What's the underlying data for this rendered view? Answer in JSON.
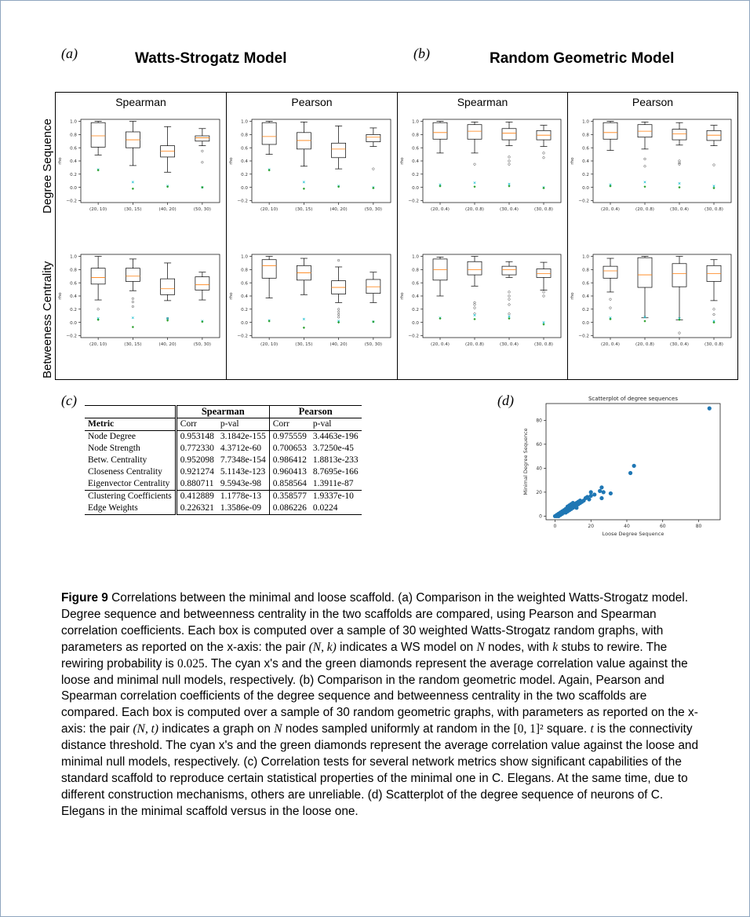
{
  "panel_labels": {
    "a": "(a)",
    "b": "(b)",
    "c": "(c)",
    "d": "(d)"
  },
  "titles": {
    "ws": "Watts-Strogatz Model",
    "rg": "Random Geometric Model"
  },
  "row_labels": {
    "degree": "Degree Sequence",
    "betweenness": "Betweeness Centrality"
  },
  "column_headers": [
    "Spearman",
    "Pearson",
    "Spearman",
    "Pearson"
  ],
  "boxplot_axis": {
    "ylabel": "rho",
    "yticks": [
      "1.0",
      "0.8",
      "0.6",
      "0.4",
      "0.2",
      "0.0",
      "−0.2"
    ]
  },
  "chart_data": [
    {
      "id": "ws-degree-spearman",
      "type": "boxplot",
      "model": "Watts-Strogatz",
      "metric": "Degree Sequence",
      "coefficient": "Spearman",
      "ylim": [
        -0.2,
        1.0
      ],
      "ylabel": "rho",
      "categories": [
        "(20, 10)",
        "(30, 15)",
        "(40, 20)",
        "(50, 30)"
      ],
      "boxes": [
        {
          "whislo": 0.49,
          "q1": 0.61,
          "med": 0.78,
          "q3": 0.98,
          "whishi": 1.0,
          "fliers": []
        },
        {
          "whislo": 0.33,
          "q1": 0.6,
          "med": 0.72,
          "q3": 0.84,
          "whishi": 1.0,
          "fliers": []
        },
        {
          "whislo": 0.23,
          "q1": 0.46,
          "med": 0.55,
          "q3": 0.63,
          "whishi": 0.92,
          "fliers": []
        },
        {
          "whislo": 0.63,
          "q1": 0.7,
          "med": 0.75,
          "q3": 0.78,
          "whishi": 0.89,
          "fliers": [
            0.55,
            0.38
          ]
        }
      ],
      "loose_null_x": [
        0.27,
        0.08,
        0.02,
        0.0
      ],
      "minimal_null_diamond": [
        0.26,
        -0.02,
        0.01,
        0.0
      ]
    },
    {
      "id": "ws-degree-pearson",
      "type": "boxplot",
      "model": "Watts-Strogatz",
      "metric": "Degree Sequence",
      "coefficient": "Pearson",
      "ylim": [
        -0.2,
        1.0
      ],
      "ylabel": "rho",
      "categories": [
        "(20, 10)",
        "(30, 15)",
        "(40, 20)",
        "(50, 30)"
      ],
      "boxes": [
        {
          "whislo": 0.5,
          "q1": 0.65,
          "med": 0.77,
          "q3": 0.98,
          "whishi": 1.0,
          "fliers": []
        },
        {
          "whislo": 0.32,
          "q1": 0.58,
          "med": 0.71,
          "q3": 0.83,
          "whishi": 0.99,
          "fliers": []
        },
        {
          "whislo": 0.28,
          "q1": 0.45,
          "med": 0.58,
          "q3": 0.67,
          "whishi": 0.93,
          "fliers": []
        },
        {
          "whislo": 0.62,
          "q1": 0.69,
          "med": 0.76,
          "q3": 0.8,
          "whishi": 0.9,
          "fliers": [
            0.28
          ]
        }
      ],
      "loose_null_x": [
        0.27,
        0.08,
        0.02,
        0.0
      ],
      "minimal_null_diamond": [
        0.26,
        -0.02,
        0.01,
        -0.01
      ]
    },
    {
      "id": "rg-degree-spearman",
      "type": "boxplot",
      "model": "Random Geometric",
      "metric": "Degree Sequence",
      "coefficient": "Spearman",
      "ylim": [
        -0.2,
        1.0
      ],
      "ylabel": "rho",
      "categories": [
        "(20, 0.4)",
        "(20, 0.8)",
        "(30, 0.4)",
        "(30, 0.8)"
      ],
      "boxes": [
        {
          "whislo": 0.52,
          "q1": 0.73,
          "med": 0.83,
          "q3": 0.98,
          "whishi": 1.0,
          "fliers": []
        },
        {
          "whislo": 0.52,
          "q1": 0.73,
          "med": 0.85,
          "q3": 0.95,
          "whishi": 0.99,
          "fliers": [
            0.35
          ]
        },
        {
          "whislo": 0.63,
          "q1": 0.72,
          "med": 0.82,
          "q3": 0.89,
          "whishi": 0.99,
          "fliers": [
            0.46,
            0.4,
            0.35
          ]
        },
        {
          "whislo": 0.62,
          "q1": 0.72,
          "med": 0.79,
          "q3": 0.86,
          "whishi": 0.94,
          "fliers": [
            0.52,
            0.45
          ]
        }
      ],
      "loose_null_x": [
        0.04,
        0.07,
        0.05,
        0.0
      ],
      "minimal_null_diamond": [
        0.02,
        0.01,
        0.02,
        -0.01
      ]
    },
    {
      "id": "rg-degree-pearson",
      "type": "boxplot",
      "model": "Random Geometric",
      "metric": "Degree Sequence",
      "coefficient": "Pearson",
      "ylim": [
        -0.2,
        1.0
      ],
      "ylabel": "rho",
      "categories": [
        "(20, 0.4)",
        "(20, 0.8)",
        "(30, 0.4)",
        "(30, 0.8)"
      ],
      "boxes": [
        {
          "whislo": 0.56,
          "q1": 0.73,
          "med": 0.83,
          "q3": 0.98,
          "whishi": 1.0,
          "fliers": []
        },
        {
          "whislo": 0.58,
          "q1": 0.76,
          "med": 0.85,
          "q3": 0.95,
          "whishi": 0.99,
          "fliers": [
            0.43,
            0.32
          ]
        },
        {
          "whislo": 0.64,
          "q1": 0.72,
          "med": 0.81,
          "q3": 0.88,
          "whishi": 0.98,
          "fliers": [
            0.4,
            0.37,
            0.35
          ]
        },
        {
          "whislo": 0.63,
          "q1": 0.71,
          "med": 0.79,
          "q3": 0.86,
          "whishi": 0.94,
          "fliers": [
            0.34
          ]
        }
      ],
      "loose_null_x": [
        0.04,
        0.08,
        0.06,
        0.02
      ],
      "minimal_null_diamond": [
        0.02,
        0.01,
        0.0,
        -0.01
      ]
    },
    {
      "id": "ws-betweenness-spearman",
      "type": "boxplot",
      "model": "Watts-Strogatz",
      "metric": "Betweeness Centrality",
      "coefficient": "Spearman",
      "ylim": [
        -0.2,
        1.0
      ],
      "ylabel": "rho",
      "categories": [
        "(20, 10)",
        "(30, 15)",
        "(40, 20)",
        "(50, 30)"
      ],
      "boxes": [
        {
          "whislo": 0.34,
          "q1": 0.58,
          "med": 0.68,
          "q3": 0.82,
          "whishi": 1.0,
          "fliers": [
            0.2
          ]
        },
        {
          "whislo": 0.48,
          "q1": 0.62,
          "med": 0.7,
          "q3": 0.82,
          "whishi": 0.96,
          "fliers": [
            0.36,
            0.31,
            0.24
          ]
        },
        {
          "whislo": 0.33,
          "q1": 0.42,
          "med": 0.51,
          "q3": 0.66,
          "whishi": 0.9,
          "fliers": [
            0.06
          ]
        },
        {
          "whislo": 0.34,
          "q1": 0.49,
          "med": 0.57,
          "q3": 0.69,
          "whishi": 0.76,
          "fliers": []
        }
      ],
      "loose_null_x": [
        0.06,
        0.07,
        0.06,
        0.02
      ],
      "minimal_null_diamond": [
        0.04,
        -0.07,
        0.03,
        0.01
      ]
    },
    {
      "id": "ws-betweenness-pearson",
      "type": "boxplot",
      "model": "Watts-Strogatz",
      "metric": "Betweeness Centrality",
      "coefficient": "Pearson",
      "ylim": [
        -0.2,
        1.0
      ],
      "ylabel": "rho",
      "categories": [
        "(20, 10)",
        "(30, 15)",
        "(40, 20)",
        "(50, 30)"
      ],
      "boxes": [
        {
          "whislo": 0.37,
          "q1": 0.67,
          "med": 0.86,
          "q3": 0.95,
          "whishi": 1.0,
          "fliers": []
        },
        {
          "whislo": 0.42,
          "q1": 0.64,
          "med": 0.75,
          "q3": 0.86,
          "whishi": 0.97,
          "fliers": []
        },
        {
          "whislo": 0.3,
          "q1": 0.43,
          "med": 0.53,
          "q3": 0.63,
          "whishi": 0.84,
          "fliers": [
            0.94,
            0.2,
            0.16,
            0.12,
            0.08
          ]
        },
        {
          "whislo": 0.3,
          "q1": 0.44,
          "med": 0.54,
          "q3": 0.65,
          "whishi": 0.76,
          "fliers": []
        }
      ],
      "loose_null_x": [
        0.03,
        0.05,
        0.02,
        0.01
      ],
      "minimal_null_diamond": [
        0.02,
        -0.08,
        0.0,
        0.01
      ]
    },
    {
      "id": "rg-betweenness-spearman",
      "type": "boxplot",
      "model": "Random Geometric",
      "metric": "Betweeness Centrality",
      "coefficient": "Spearman",
      "ylim": [
        -0.2,
        1.0
      ],
      "ylabel": "rho",
      "categories": [
        "(20, 0.4)",
        "(20, 0.8)",
        "(30, 0.4)",
        "(30, 0.8)"
      ],
      "boxes": [
        {
          "whislo": 0.4,
          "q1": 0.64,
          "med": 0.8,
          "q3": 0.96,
          "whishi": 0.99,
          "fliers": []
        },
        {
          "whislo": 0.55,
          "q1": 0.72,
          "med": 0.8,
          "q3": 0.92,
          "whishi": 1.0,
          "fliers": [
            0.3,
            0.27,
            0.22,
            0.13
          ]
        },
        {
          "whislo": 0.68,
          "q1": 0.72,
          "med": 0.8,
          "q3": 0.85,
          "whishi": 0.92,
          "fliers": [
            0.46,
            0.4,
            0.35,
            0.27,
            0.13
          ]
        },
        {
          "whislo": 0.49,
          "q1": 0.68,
          "med": 0.74,
          "q3": 0.81,
          "whishi": 0.91,
          "fliers": [
            0.46,
            0.4
          ]
        }
      ],
      "loose_null_x": [
        0.07,
        0.11,
        0.09,
        0.0
      ],
      "minimal_null_diamond": [
        0.06,
        0.05,
        0.06,
        -0.03
      ]
    },
    {
      "id": "rg-betweenness-pearson",
      "type": "boxplot",
      "model": "Random Geometric",
      "metric": "Betweeness Centrality",
      "coefficient": "Pearson",
      "ylim": [
        -0.2,
        1.0
      ],
      "ylabel": "rho",
      "categories": [
        "(20, 0.4)",
        "(20, 0.8)",
        "(30, 0.4)",
        "(30, 0.8)"
      ],
      "boxes": [
        {
          "whislo": 0.46,
          "q1": 0.67,
          "med": 0.78,
          "q3": 0.85,
          "whishi": 0.97,
          "fliers": [
            0.35,
            0.22
          ]
        },
        {
          "whislo": 0.07,
          "q1": 0.53,
          "med": 0.72,
          "q3": 0.98,
          "whishi": 1.0,
          "fliers": []
        },
        {
          "whislo": 0.04,
          "q1": 0.54,
          "med": 0.74,
          "q3": 0.89,
          "whishi": 1.0,
          "fliers": [
            -0.16
          ]
        },
        {
          "whislo": 0.33,
          "q1": 0.62,
          "med": 0.74,
          "q3": 0.86,
          "whishi": 0.95,
          "fliers": [
            0.2,
            0.12
          ]
        }
      ],
      "loose_null_x": [
        0.07,
        0.08,
        0.06,
        0.02
      ],
      "minimal_null_diamond": [
        0.05,
        0.02,
        0.04,
        0.0
      ]
    },
    {
      "id": "scatter-degree",
      "type": "scatter",
      "title": "Scatterplot of degree sequences",
      "xlabel": "Loose Degree Sequence",
      "ylabel": "Minimal Degree Sequence",
      "xlim": [
        -5,
        92
      ],
      "ylim": [
        -3,
        94
      ],
      "xticks": [
        0,
        20,
        40,
        60,
        80
      ],
      "yticks": [
        0,
        20,
        40,
        60,
        80
      ],
      "points": [
        [
          0,
          0
        ],
        [
          1,
          0
        ],
        [
          1,
          1
        ],
        [
          2,
          1
        ],
        [
          2,
          2
        ],
        [
          2,
          0
        ],
        [
          3,
          1
        ],
        [
          3,
          2
        ],
        [
          3,
          3
        ],
        [
          4,
          2
        ],
        [
          4,
          3
        ],
        [
          4,
          4
        ],
        [
          5,
          3
        ],
        [
          5,
          4
        ],
        [
          5,
          5
        ],
        [
          6,
          3
        ],
        [
          6,
          5
        ],
        [
          6,
          6
        ],
        [
          7,
          4
        ],
        [
          7,
          6
        ],
        [
          7,
          8
        ],
        [
          8,
          5
        ],
        [
          8,
          7
        ],
        [
          8,
          9
        ],
        [
          9,
          6
        ],
        [
          9,
          8
        ],
        [
          9,
          10
        ],
        [
          10,
          7
        ],
        [
          10,
          9
        ],
        [
          10,
          11
        ],
        [
          11,
          8
        ],
        [
          11,
          10
        ],
        [
          12,
          9
        ],
        [
          12,
          11
        ],
        [
          12,
          7
        ],
        [
          13,
          10
        ],
        [
          13,
          12
        ],
        [
          14,
          11
        ],
        [
          14,
          13
        ],
        [
          15,
          12
        ],
        [
          16,
          13
        ],
        [
          17,
          15
        ],
        [
          18,
          16
        ],
        [
          19,
          14
        ],
        [
          20,
          20
        ],
        [
          20,
          17
        ],
        [
          22,
          18
        ],
        [
          25,
          21
        ],
        [
          26,
          24
        ],
        [
          26,
          15
        ],
        [
          27,
          20
        ],
        [
          31,
          19
        ],
        [
          42,
          36
        ],
        [
          44,
          42
        ],
        [
          86,
          90
        ]
      ]
    }
  ],
  "table": {
    "group_headers": [
      "Spearman",
      "Pearson"
    ],
    "columns": [
      "Metric",
      "Corr",
      "p-val",
      "Corr",
      "p-val"
    ],
    "rows": [
      [
        "Node Degree",
        "0.953148",
        "3.1842e-155",
        "0.975559",
        "3.4463e-196"
      ],
      [
        "Node Strength",
        "0.772330",
        "4.3712e-60",
        "0.700653",
        "3.7250e-45"
      ],
      [
        "Betw. Centrality",
        "0.952098",
        "7.7348e-154",
        "0.986412",
        "1.8813e-233"
      ],
      [
        "Closeness Centrality",
        "0.921274",
        "5.1143e-123",
        "0.960413",
        "8.7695e-166"
      ],
      [
        "Eigenvector Centrality",
        "0.880711",
        "9.5943e-98",
        "0.858564",
        "1.3911e-87"
      ],
      [
        "Clustering Coefficients",
        "0.412889",
        "1.1778e-13",
        "0.358577",
        "1.9337e-10"
      ],
      [
        "Edge Weights",
        "0.226321",
        "1.3586e-09",
        "0.086226",
        "0.0224"
      ]
    ]
  },
  "caption": {
    "label": "Figure 9",
    "s1": " Correlations between the minimal and loose scaffold. (a) Comparison in the weighted Watts-Strogatz model. Degree sequence and betweenness centrality in the two scaffolds are compared, using Pearson and Spearman correlation coefficients. Each box is computed over a sample of 30 weighted Watts-Strogatz random graphs, with parameters as reported on the x-axis: the pair ",
    "m1": "(N, k)",
    "s2": " indicates a WS model on ",
    "m2": "N",
    "s3": " nodes, with ",
    "m3": "k",
    "s4": " stubs to rewire. The rewiring probability is ",
    "m4": "0.025",
    "s5": ". The cyan x's and the green diamonds represent the average correlation value against the loose and minimal null models, respectively. (b) Comparison in the random geometric model. Again, Pearson and Spearman correlation coefficients of the degree sequence and betweenness centrality in the two scaffolds are compared. Each box is computed over a sample of 30 random geometric graphs, with parameters as reported on the x-axis: the pair ",
    "m5": "(N, t)",
    "s6": " indicates a graph on ",
    "m6": "N",
    "s7": " nodes sampled uniformly at random in the ",
    "m7": "[0, 1]²",
    "s8": " square. ",
    "m8": "t",
    "s9": " is the connectivity distance threshold. The cyan x's and the green diamonds represent the average correlation value against the loose and minimal null models, respectively. (c) Correlation tests for several network metrics show significant capabilities of the standard scaffold to reproduce certain statistical properties of the minimal one in C. Elegans. At the same time, due to different construction mechanisms, others are unreliable. (d) Scatterplot of the degree sequence of neurons of C. Elegans in the minimal scaffold versus in the loose one."
  },
  "colors": {
    "box": "#000000",
    "median": "#ff7f0e",
    "loose_x": "#17becf",
    "minimal_diamond": "#2ca02c",
    "scatter": "#1f77b4",
    "frame": "#8fa6bf"
  }
}
